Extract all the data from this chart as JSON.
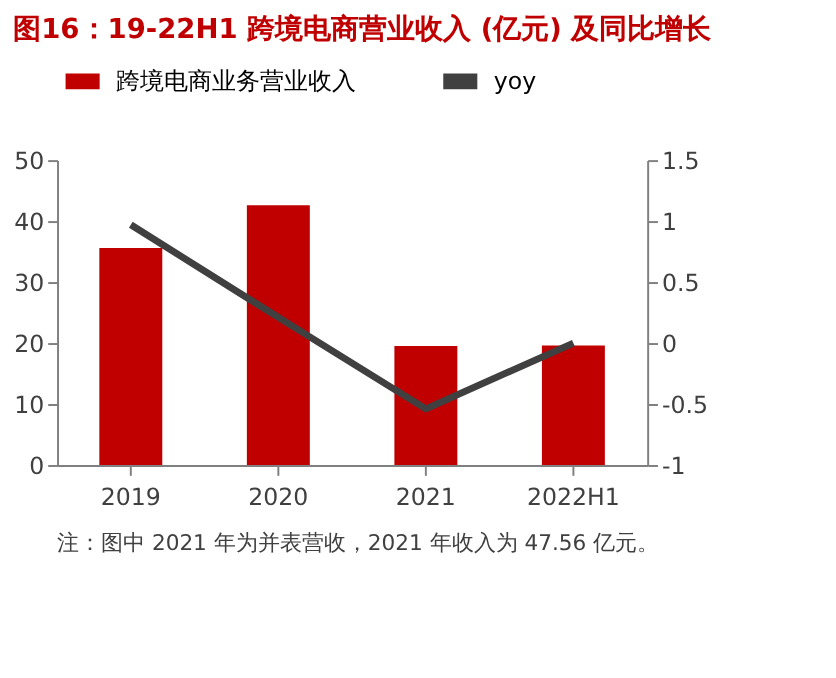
{
  "chart_data": {
    "type": "bar",
    "title": "图16：19-22H1 跨境电商营业收入 (亿元) 及同比增长",
    "categories": [
      "2019",
      "2020",
      "2021",
      "2022H1"
    ],
    "series": [
      {
        "name": "跨境电商业务营业收入",
        "color": "#c00000",
        "values": [
          35.6,
          42.6,
          19.5,
          19.6
        ]
      },
      {
        "name": "yoy",
        "type": "line",
        "axis": "y2",
        "color": "#404040",
        "values": [
          0.97,
          0.21,
          -0.54,
          0.0
        ]
      }
    ],
    "ylim": [
      0,
      50
    ],
    "yticks": [
      0,
      10,
      20,
      30,
      40,
      50
    ],
    "y2lim": [
      -1,
      1.5
    ],
    "y2ticks": [
      -1,
      -0.5,
      0,
      0.5,
      1,
      1.5
    ],
    "grid": false,
    "legend": "top",
    "marker": "none",
    "line_style": "solid",
    "annotations": [
      "注：图中 2021 年为并表营收，2021 年收入为 47.56 亿元。"
    ]
  }
}
